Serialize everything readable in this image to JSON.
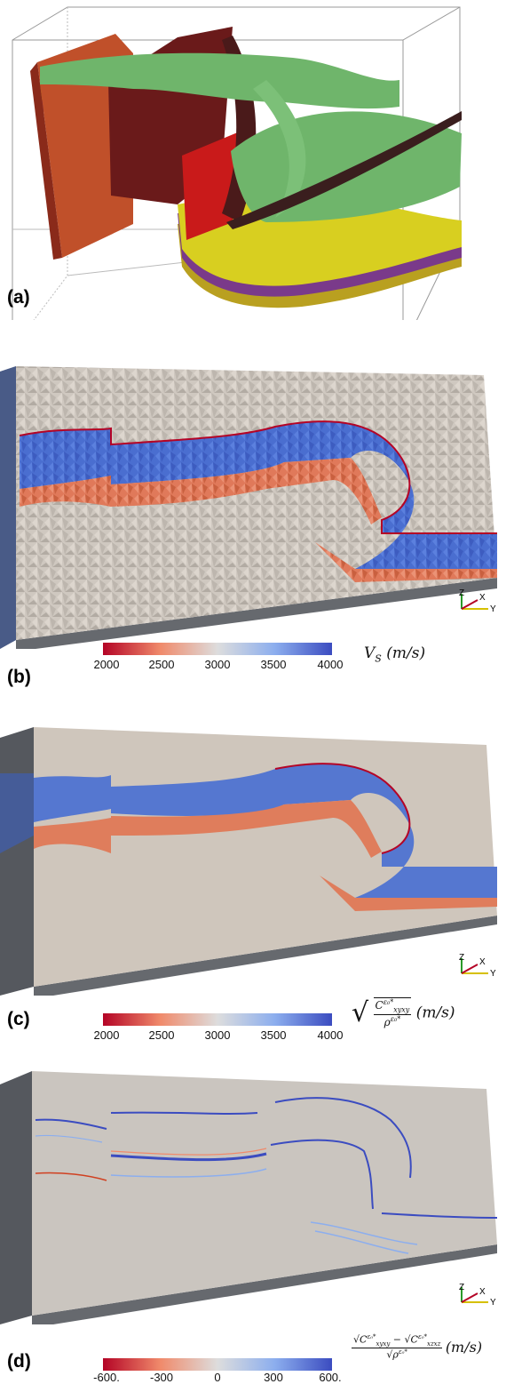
{
  "panels": [
    {
      "label": "(a)"
    },
    {
      "label": "(b)",
      "colorbar": {
        "ticks": [
          "2000",
          "2500",
          "3000",
          "3500",
          "4000"
        ],
        "low_color": "#b40426",
        "mid_color": "#dddddd",
        "high_color": "#3b4cc0"
      },
      "quantity": "V",
      "quantity_sub": "S",
      "units": "(m/s)"
    },
    {
      "label": "(c)",
      "colorbar": {
        "ticks": [
          "2000",
          "2500",
          "3000",
          "3500",
          "4000"
        ]
      },
      "quantity_num": "C",
      "quantity_num_sub": "xyxy",
      "quantity_sup": "ε₀*",
      "quantity_den": "ρ",
      "quantity_den_sup": "ε₀*",
      "units": "(m/s)"
    },
    {
      "label": "(d)",
      "colorbar": {
        "ticks": [
          "-600.",
          "-300",
          "0",
          "300",
          "600."
        ]
      },
      "term1": "C",
      "term1_sub": "xyxy",
      "term2": "C",
      "term2_sub": "xzxz",
      "sup": "ε₀*",
      "den": "ρ",
      "den_sup": "ε₀*",
      "units": "(m/s)"
    }
  ],
  "axes_labels": {
    "z": "Z",
    "x": "X",
    "y": "Y"
  }
}
